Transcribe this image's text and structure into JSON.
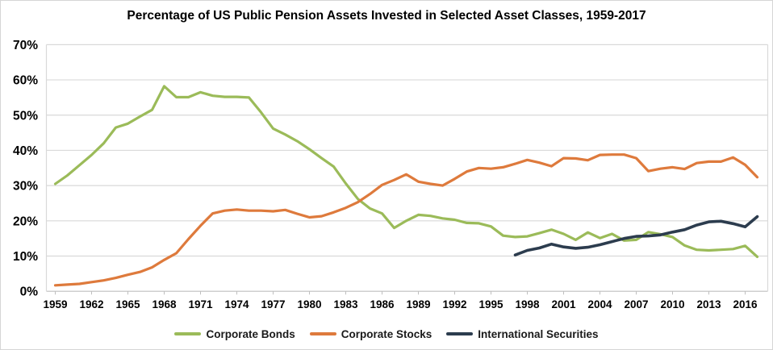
{
  "title": "Percentage of US Public Pension Assets Invested in Selected Asset Classes, 1959-2017",
  "colors": {
    "bonds": "#9BBB59",
    "stocks": "#DE7A3C",
    "international": "#2C3C4E",
    "gridline": "#D9D9D9",
    "axis_line": "#BFBFBF",
    "label_text": "#000000"
  },
  "chart_data": {
    "type": "line",
    "title": "Percentage of US Public Pension Assets Invested in Selected Asset Classes, 1959-2017",
    "xlabel": "",
    "ylabel": "",
    "ylim": [
      0,
      70
    ],
    "y_tick_step": 10,
    "y_tick_labels": [
      "70%",
      "60%",
      "50%",
      "40%",
      "30%",
      "20%",
      "10%",
      "0%"
    ],
    "x_tick_labels": [
      "1959",
      "1962",
      "1965",
      "1968",
      "1971",
      "1974",
      "1977",
      "1980",
      "1983",
      "1986",
      "1989",
      "1992",
      "1995",
      "1998",
      "2001",
      "2004",
      "2007",
      "2010",
      "2013",
      "2016"
    ],
    "x_range": [
      1959,
      2017
    ],
    "grid": "horizontal",
    "legend_position": "bottom",
    "series": [
      {
        "name": "Corporate Bonds",
        "color": "#9BBB59",
        "start_year": 1959,
        "values": [
          30.5,
          32.9,
          35.8,
          38.7,
          42.0,
          46.5,
          47.6,
          49.6,
          51.5,
          58.2,
          55.1,
          55.1,
          56.5,
          55.5,
          55.2,
          55.2,
          55.0,
          50.8,
          46.2,
          44.5,
          42.6,
          40.3,
          37.8,
          35.4,
          30.6,
          26.2,
          23.5,
          22.1,
          18.0,
          20.0,
          21.7,
          21.4,
          20.7,
          20.3,
          19.4,
          19.3,
          18.4,
          15.8,
          15.4,
          15.6,
          16.5,
          17.5,
          16.3,
          14.6,
          16.7,
          15.1,
          16.3,
          14.4,
          14.6,
          16.8,
          16.2,
          15.4,
          13.0,
          11.8,
          11.6,
          11.8,
          12.0,
          12.9,
          9.8
        ]
      },
      {
        "name": "Corporate Stocks",
        "color": "#DE7A3C",
        "start_year": 1959,
        "values": [
          1.7,
          1.9,
          2.1,
          2.6,
          3.1,
          3.8,
          4.7,
          5.5,
          6.8,
          8.9,
          10.8,
          14.8,
          18.6,
          22.1,
          22.9,
          23.2,
          22.9,
          22.9,
          22.7,
          23.1,
          22.0,
          21.0,
          21.3,
          22.4,
          23.7,
          25.3,
          27.6,
          30.2,
          31.6,
          33.2,
          31.1,
          30.5,
          30.0,
          31.9,
          34.0,
          35.0,
          34.8,
          35.2,
          36.2,
          37.3,
          36.5,
          35.5,
          37.8,
          37.7,
          37.2,
          38.7,
          38.8,
          38.8,
          37.8,
          34.1,
          34.8,
          35.2,
          34.7,
          36.4,
          36.8,
          36.8,
          38.0,
          35.9,
          32.4
        ]
      },
      {
        "name": "International Securities",
        "color": "#2C3C4E",
        "start_year": 1997,
        "values": [
          10.3,
          11.6,
          12.3,
          13.4,
          12.6,
          12.2,
          12.5,
          13.2,
          14.1,
          15.0,
          15.6,
          15.7,
          16.0,
          16.8,
          17.5,
          18.8,
          19.7,
          19.9,
          19.2,
          18.3,
          21.2
        ]
      }
    ]
  }
}
